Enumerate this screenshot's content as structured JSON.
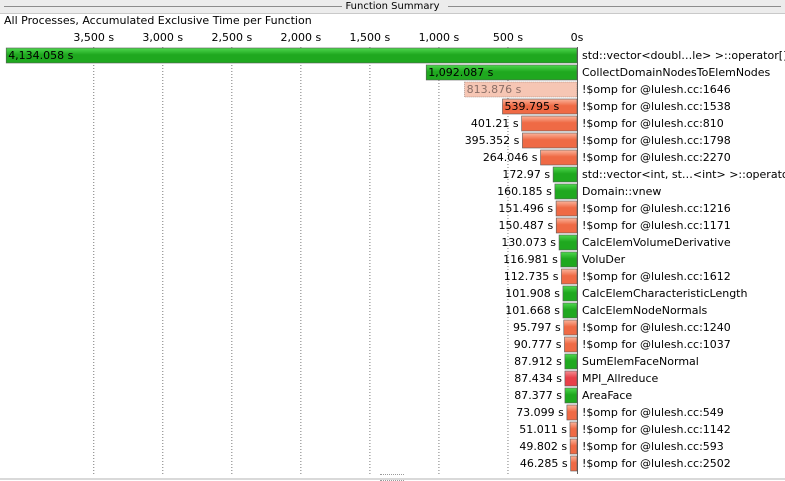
{
  "panel": {
    "title": "Function Summary"
  },
  "chart_data": {
    "type": "bar",
    "orientation": "horizontal",
    "title": "All Processes, Accumulated Exclusive Time per Function",
    "xlim": [
      4150,
      0
    ],
    "x_ticks": [
      "3,500 s",
      "3,000 s",
      "2,500 s",
      "2,000 s",
      "1,500 s",
      "1,000 s",
      "500 s",
      "0s"
    ],
    "x_tick_values": [
      3500,
      3000,
      2500,
      2000,
      1500,
      1000,
      500,
      0
    ],
    "grid": true,
    "colors": {
      "function": "#1fa81f",
      "function_light": "#4fd84f",
      "omp": "#ef6a45",
      "omp_light": "#fbb49c",
      "mpi": "#e8404a",
      "mpi_light": "#f58e93",
      "grid": "#7a7a7a",
      "selected_fill": "#f6c6b4",
      "selected_text": "#8a6e66"
    },
    "bars": [
      {
        "name": "std::vector<doubl…le> >::operator[]",
        "value": 4134.058,
        "label": "4,134.058 s",
        "kind": "function"
      },
      {
        "name": "CollectDomainNodesToElemNodes",
        "value": 1092.087,
        "label": "1,092.087 s",
        "kind": "function"
      },
      {
        "name": "!$omp for @lulesh.cc:1646",
        "value": 813.876,
        "label": "813.876 s",
        "kind": "omp",
        "selected": true
      },
      {
        "name": "!$omp for @lulesh.cc:1538",
        "value": 539.795,
        "label": "539.795 s",
        "kind": "omp"
      },
      {
        "name": "!$omp for @lulesh.cc:810",
        "value": 401.21,
        "label": "401.21 s",
        "kind": "omp"
      },
      {
        "name": "!$omp for @lulesh.cc:1798",
        "value": 395.352,
        "label": "395.352 s",
        "kind": "omp"
      },
      {
        "name": "!$omp for @lulesh.cc:2270",
        "value": 264.046,
        "label": "264.046 s",
        "kind": "omp"
      },
      {
        "name": "std::vector<int, st…<int> >::operator[]",
        "value": 172.97,
        "label": "172.97 s",
        "kind": "function"
      },
      {
        "name": "Domain::vnew",
        "value": 160.185,
        "label": "160.185 s",
        "kind": "function"
      },
      {
        "name": "!$omp for @lulesh.cc:1216",
        "value": 151.496,
        "label": "151.496 s",
        "kind": "omp"
      },
      {
        "name": "!$omp for @lulesh.cc:1171",
        "value": 150.487,
        "label": "150.487 s",
        "kind": "omp"
      },
      {
        "name": "CalcElemVolumeDerivative",
        "value": 130.073,
        "label": "130.073 s",
        "kind": "function"
      },
      {
        "name": "VoluDer",
        "value": 116.981,
        "label": "116.981 s",
        "kind": "function"
      },
      {
        "name": "!$omp for @lulesh.cc:1612",
        "value": 112.735,
        "label": "112.735 s",
        "kind": "omp"
      },
      {
        "name": "CalcElemCharacteristicLength",
        "value": 101.908,
        "label": "101.908 s",
        "kind": "function"
      },
      {
        "name": "CalcElemNodeNormals",
        "value": 101.668,
        "label": "101.668 s",
        "kind": "function"
      },
      {
        "name": "!$omp for @lulesh.cc:1240",
        "value": 95.797,
        "label": "95.797 s",
        "kind": "omp"
      },
      {
        "name": "!$omp for @lulesh.cc:1037",
        "value": 90.777,
        "label": "90.777 s",
        "kind": "omp"
      },
      {
        "name": "SumElemFaceNormal",
        "value": 87.912,
        "label": "87.912 s",
        "kind": "function"
      },
      {
        "name": "MPI_Allreduce",
        "value": 87.434,
        "label": "87.434 s",
        "kind": "mpi"
      },
      {
        "name": "AreaFace",
        "value": 87.377,
        "label": "87.377 s",
        "kind": "function"
      },
      {
        "name": "!$omp for @lulesh.cc:549",
        "value": 73.099,
        "label": "73.099 s",
        "kind": "omp"
      },
      {
        "name": "!$omp for @lulesh.cc:1142",
        "value": 51.011,
        "label": "51.011 s",
        "kind": "omp"
      },
      {
        "name": "!$omp for @lulesh.cc:593",
        "value": 49.802,
        "label": "49.802 s",
        "kind": "omp"
      },
      {
        "name": "!$omp for @lulesh.cc:2502",
        "value": 46.285,
        "label": "46.285 s",
        "kind": "omp"
      }
    ]
  }
}
